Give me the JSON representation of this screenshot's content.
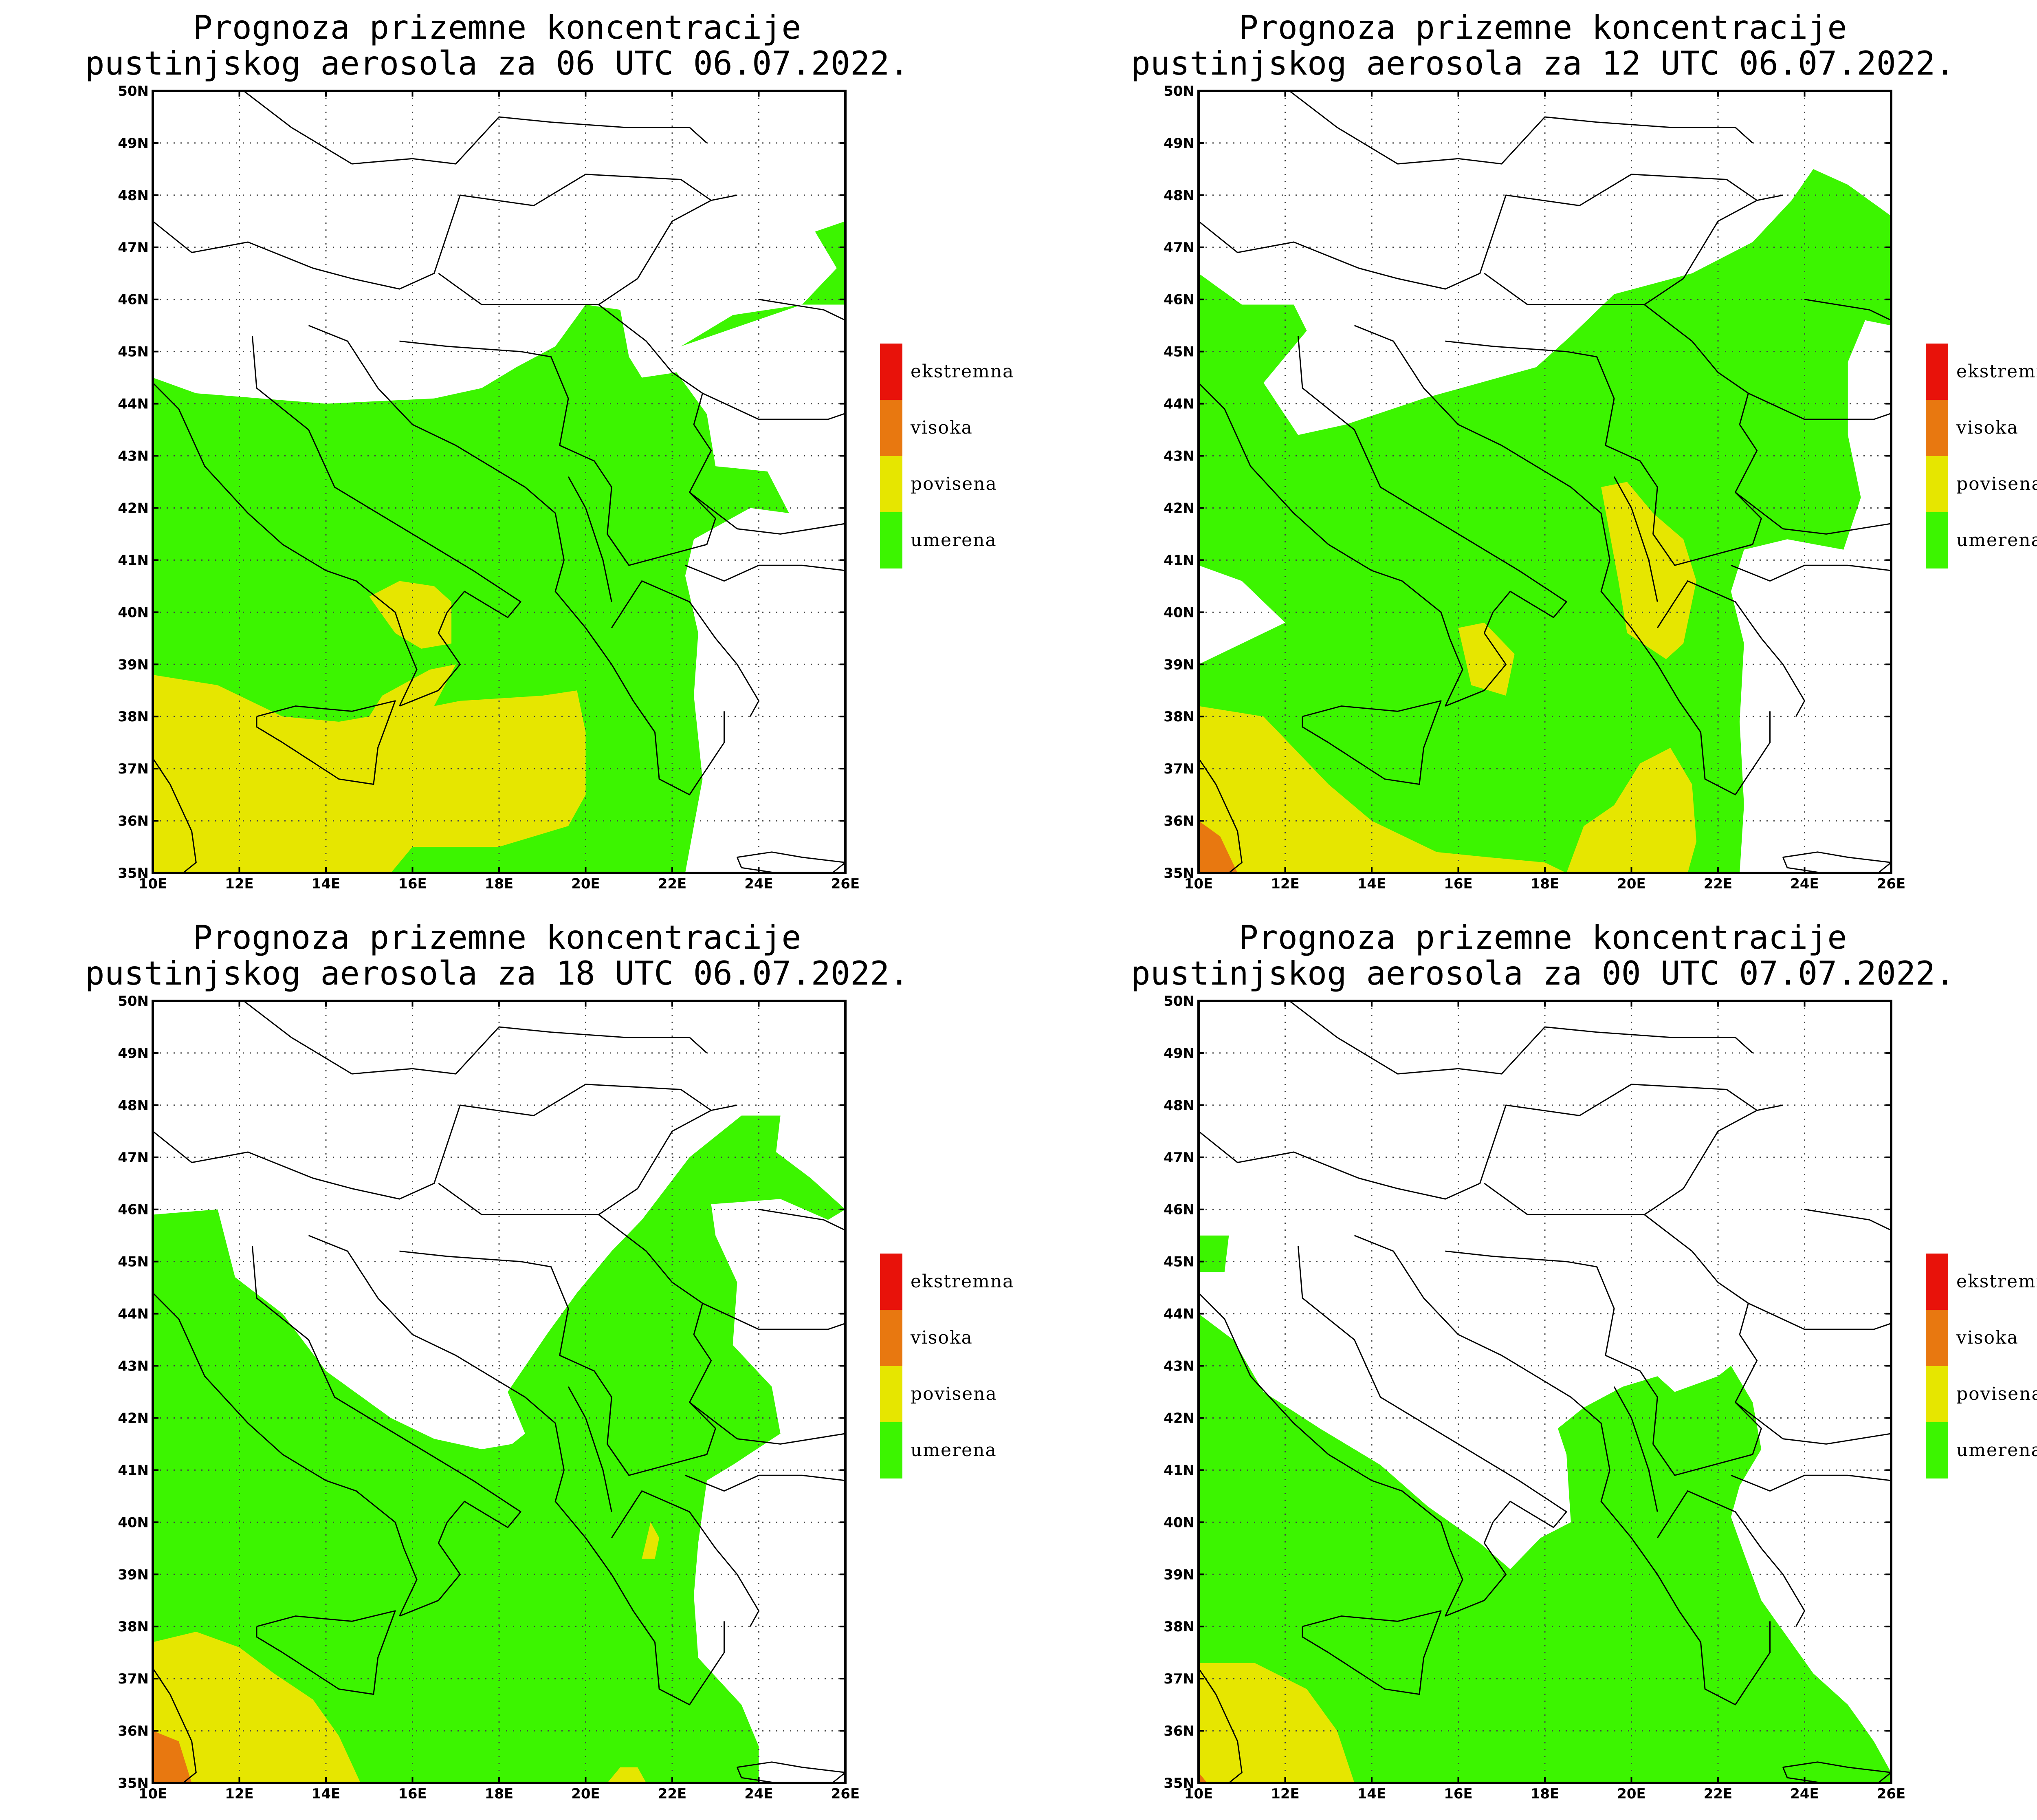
{
  "panels": [
    {
      "title_line1": "Prognoza prizemne koncentracije",
      "title_line2": "pustinjskog aerosola za 06 UTC 06.07.2022."
    },
    {
      "title_line1": "Prognoza prizemne koncentracije",
      "title_line2": "pustinjskog aerosola za 12 UTC 06.07.2022."
    },
    {
      "title_line1": "Prognoza prizemne koncentracije",
      "title_line2": "pustinjskog aerosola za 18 UTC 06.07.2022."
    },
    {
      "title_line1": "Prognoza prizemne koncentracije",
      "title_line2": "pustinjskog aerosola za 00 UTC 07.07.2022."
    }
  ],
  "axes": {
    "lat_labels": [
      "50N",
      "49N",
      "48N",
      "47N",
      "46N",
      "45N",
      "44N",
      "43N",
      "42N",
      "41N",
      "40N",
      "39N",
      "38N",
      "37N",
      "36N",
      "35N"
    ],
    "lon_labels": [
      "10E",
      "12E",
      "14E",
      "16E",
      "18E",
      "20E",
      "22E",
      "24E",
      "26E"
    ],
    "lat_range": [
      35,
      50
    ],
    "lon_range": [
      10,
      26
    ]
  },
  "legend": [
    {
      "label": "ekstremna",
      "color": "#e8120a"
    },
    {
      "label": "visoka",
      "color": "#e87810"
    },
    {
      "label": "povisena",
      "color": "#e6e600"
    },
    {
      "label": "umerena",
      "color": "#3cf500"
    }
  ],
  "colors": {
    "umerena": "#3cf500",
    "povisena": "#e6e600",
    "visoka": "#e87810",
    "ekstremna": "#e8120a"
  }
}
